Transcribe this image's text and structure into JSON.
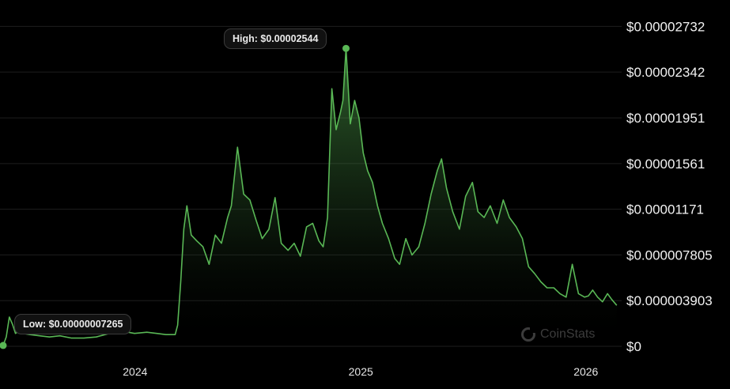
{
  "colors": {
    "line": "#59b755",
    "background": "#000000",
    "grid": "#1e1e1e"
  },
  "high_label": "High: $0.00002544",
  "low_label": "Low: $0.00000007265",
  "watermark": "CoinStats",
  "watermark_icon": "coinstats-logo-icon",
  "chart_data": {
    "type": "area",
    "title": "",
    "xlabel": "",
    "ylabel": "",
    "grid": true,
    "y_ticks": [
      0,
      3.903e-06,
      7.805e-06,
      1.171e-05,
      1.561e-05,
      1.951e-05,
      2.342e-05,
      2.732e-05
    ],
    "y_tick_labels": [
      "$0",
      "$0.000003903",
      "$0.000007805",
      "$0.00001171",
      "$0.00001561",
      "$0.00001951",
      "$0.00002342",
      "$0.00002732"
    ],
    "ylim": [
      0,
      2.89e-05
    ],
    "xlim": [
      "2023-06-01",
      "2026-02-28"
    ],
    "x_ticks": [
      "2024-01-01",
      "2025-01-01",
      "2026-01-01"
    ],
    "x_tick_labels": [
      "2024",
      "2025",
      "2026"
    ],
    "high": {
      "date": "2024-12-08",
      "value": 2.544e-05
    },
    "low": {
      "date": "2023-06-01",
      "value": 7.265e-08
    },
    "series": [
      {
        "x": [
          "2023-06-01",
          "2023-06-06",
          "2023-06-11",
          "2023-06-16",
          "2023-06-21",
          "2023-06-26",
          "2023-07-03",
          "2023-07-15",
          "2023-07-30",
          "2023-08-15",
          "2023-09-01",
          "2023-09-20",
          "2023-10-10",
          "2023-10-30",
          "2023-11-20",
          "2023-12-10",
          "2023-12-31",
          "2024-01-20",
          "2024-02-05",
          "2024-02-20",
          "2024-03-01",
          "2024-03-06",
          "2024-03-10",
          "2024-03-15",
          "2024-03-20",
          "2024-03-25",
          "2024-04-01",
          "2024-04-10",
          "2024-04-20",
          "2024-04-30",
          "2024-05-10",
          "2024-05-20",
          "2024-05-30",
          "2024-06-05",
          "2024-06-15",
          "2024-06-25",
          "2024-07-05",
          "2024-07-15",
          "2024-07-25",
          "2024-08-05",
          "2024-08-15",
          "2024-08-25",
          "2024-09-05",
          "2024-09-15",
          "2024-09-25",
          "2024-10-05",
          "2024-10-15",
          "2024-10-25",
          "2024-11-01",
          "2024-11-08",
          "2024-11-15",
          "2024-11-22",
          "2024-11-29",
          "2024-12-03",
          "2024-12-08",
          "2024-12-15",
          "2024-12-22",
          "2024-12-29",
          "2025-01-05",
          "2025-01-12",
          "2025-01-20",
          "2025-01-28",
          "2025-02-05",
          "2025-02-15",
          "2025-02-25",
          "2025-03-05",
          "2025-03-15",
          "2025-03-25",
          "2025-04-05",
          "2025-04-15",
          "2025-04-25",
          "2025-05-05",
          "2025-05-12",
          "2025-05-20",
          "2025-05-30",
          "2025-06-10",
          "2025-06-20",
          "2025-07-01",
          "2025-07-10",
          "2025-07-20",
          "2025-07-30",
          "2025-08-10",
          "2025-08-20",
          "2025-08-30",
          "2025-09-10",
          "2025-09-20",
          "2025-09-30",
          "2025-10-10",
          "2025-10-20",
          "2025-10-30",
          "2025-11-10",
          "2025-11-20",
          "2025-11-30",
          "2025-12-10",
          "2025-12-20",
          "2025-12-30",
          "2026-01-05",
          "2026-01-12",
          "2026-01-20",
          "2026-01-28",
          "2026-02-05",
          "2026-02-12",
          "2026-02-20"
        ],
        "values": [
          7.265e-08,
          8e-07,
          2.5e-06,
          1.9e-06,
          1.1e-06,
          1.3e-06,
          1.1e-06,
          1e-06,
          9e-07,
          8e-07,
          9e-07,
          7e-07,
          7e-07,
          8e-07,
          1.1e-06,
          1.3e-06,
          1.1e-06,
          1.2e-06,
          1.1e-06,
          1e-06,
          1e-06,
          1e-06,
          1.8e-06,
          5.5e-06,
          1e-05,
          1.2e-05,
          9.5e-06,
          9e-06,
          8.5e-06,
          7e-06,
          9.5e-06,
          8.8e-06,
          1.1e-05,
          1.2e-05,
          1.7e-05,
          1.3e-05,
          1.25e-05,
          1.08e-05,
          9.2e-06,
          1e-05,
          1.27e-05,
          8.8e-06,
          8.2e-06,
          8.8e-06,
          7.7e-06,
          1.02e-05,
          1.05e-05,
          9e-06,
          8.5e-06,
          1.1e-05,
          2.2e-05,
          1.85e-05,
          2e-05,
          2.1e-05,
          2.544e-05,
          1.9e-05,
          2.1e-05,
          1.95e-05,
          1.65e-05,
          1.5e-05,
          1.4e-05,
          1.2e-05,
          1.05e-05,
          9.2e-06,
          7.5e-06,
          7e-06,
          9.2e-06,
          7.8e-06,
          8.5e-06,
          1.05e-05,
          1.3e-05,
          1.5e-05,
          1.6e-05,
          1.35e-05,
          1.15e-05,
          1e-05,
          1.28e-05,
          1.4e-05,
          1.15e-05,
          1.1e-05,
          1.2e-05,
          1.05e-05,
          1.25e-05,
          1.1e-05,
          1.02e-05,
          9.2e-06,
          6.8e-06,
          6.2e-06,
          5.5e-06,
          5e-06,
          5e-06,
          4.5e-06,
          4.2e-06,
          7e-06,
          4.5e-06,
          4.2e-06,
          4.3e-06,
          4.8e-06,
          4.2e-06,
          3.8e-06,
          4.5e-06,
          4e-06,
          3.5e-06
        ]
      }
    ]
  }
}
